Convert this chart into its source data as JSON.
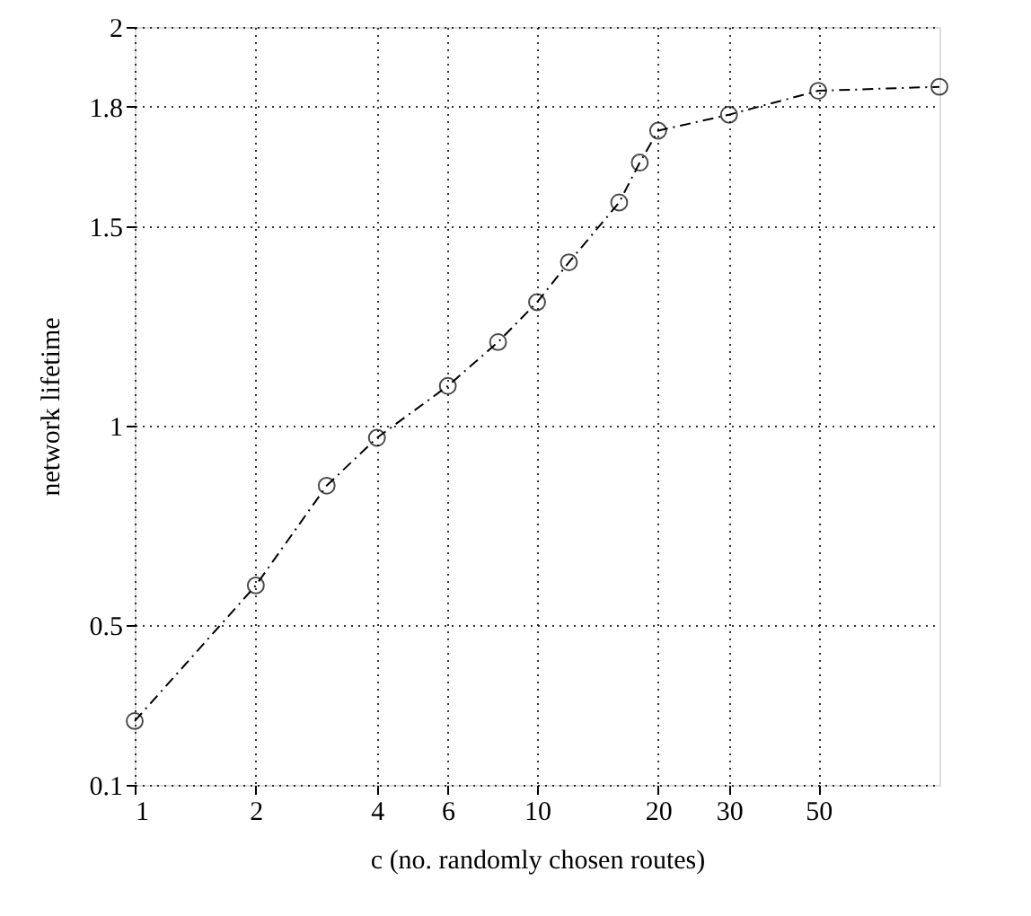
{
  "chart_data": {
    "type": "line",
    "xlabel": "c (no. randomly chosen routes)",
    "ylabel": "network lifetime",
    "x": [
      1,
      2,
      3,
      4,
      6,
      8,
      10,
      12,
      16,
      18,
      20,
      30,
      50,
      100
    ],
    "series": [
      {
        "color": "#000000",
        "values": [
          0.26,
          0.6,
          0.85,
          0.97,
          1.1,
          1.21,
          1.31,
          1.41,
          1.56,
          1.66,
          1.74,
          1.78,
          1.84,
          1.85
        ]
      }
    ],
    "log": "x",
    "xlim": [
      1,
      100
    ],
    "xticks": [
      1,
      2,
      4,
      6,
      10,
      20,
      30,
      50
    ],
    "ylim": [
      0.1,
      2
    ],
    "yticks": [
      0.1,
      0.5,
      1,
      1.5,
      1.8,
      2
    ],
    "grid": true,
    "marker": "circle",
    "line_style": "dashed",
    "legend": false
  }
}
